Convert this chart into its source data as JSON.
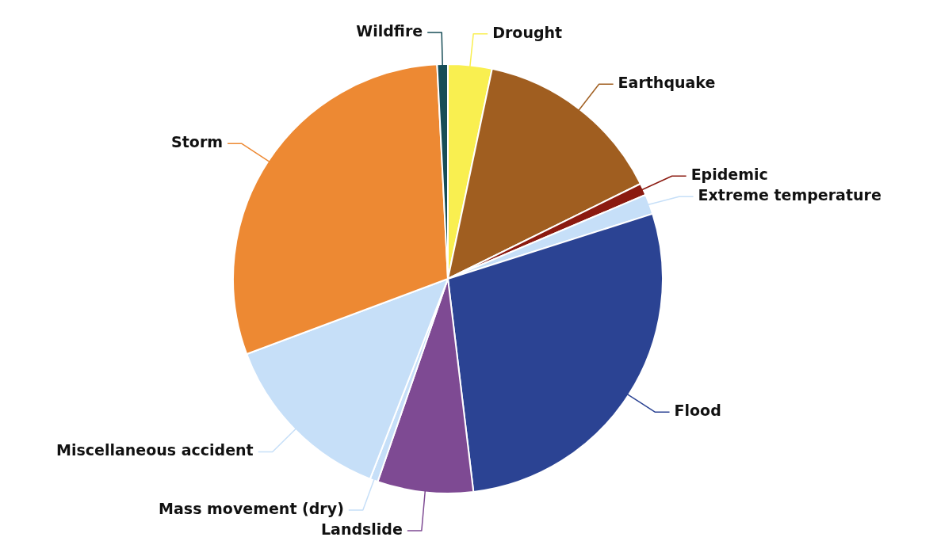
{
  "chart_data": {
    "type": "pie",
    "categories": [
      "Drought",
      "Earthquake",
      "Epidemic",
      "Extreme temperature",
      "Flood",
      "Landslide",
      "Mass movement (dry)",
      "Miscellaneous accident",
      "Storm",
      "Wildfire"
    ],
    "values": [
      3.3,
      14.4,
      0.9,
      1.5,
      28.0,
      7.2,
      0.6,
      13.4,
      29.9,
      0.8
    ],
    "colors": [
      "#f9ef50",
      "#a05e20",
      "#8b1a10",
      "#c6dff8",
      "#2b4393",
      "#7e4a93",
      "#c6dff8",
      "#c6dff8",
      "#ed8933",
      "#174d57"
    ],
    "legend": false
  }
}
